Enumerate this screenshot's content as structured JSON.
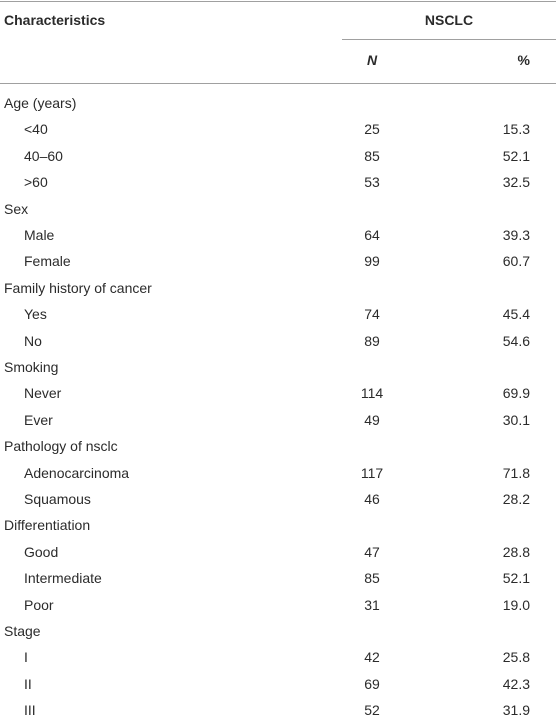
{
  "table": {
    "header": {
      "characteristics": "Characteristics",
      "group": "NSCLC",
      "n": "N",
      "pct": "%"
    },
    "groups": [
      {
        "label": "Age (years)",
        "rows": [
          [
            "<40",
            "25",
            "15.3"
          ],
          [
            "40–60",
            "85",
            "52.1"
          ],
          [
            ">60",
            "53",
            "32.5"
          ]
        ]
      },
      {
        "label": "Sex",
        "rows": [
          [
            "Male",
            "64",
            "39.3"
          ],
          [
            "Female",
            "99",
            "60.7"
          ]
        ]
      },
      {
        "label": "Family history of cancer",
        "rows": [
          [
            "Yes",
            "74",
            "45.4"
          ],
          [
            "No",
            "89",
            "54.6"
          ]
        ]
      },
      {
        "label": "Smoking",
        "rows": [
          [
            "Never",
            "114",
            "69.9"
          ],
          [
            "Ever",
            "49",
            "30.1"
          ]
        ]
      },
      {
        "label": "Pathology of nsclc",
        "rows": [
          [
            "Adenocarcinoma",
            "117",
            "71.8"
          ],
          [
            "Squamous",
            "46",
            "28.2"
          ]
        ]
      },
      {
        "label": "Differentiation",
        "rows": [
          [
            "Good",
            "47",
            "28.8"
          ],
          [
            "Intermediate",
            "85",
            "52.1"
          ],
          [
            "Poor",
            "31",
            "19.0"
          ]
        ]
      },
      {
        "label": "Stage",
        "rows": [
          [
            "I",
            "42",
            "25.8"
          ],
          [
            "II",
            "69",
            "42.3"
          ],
          [
            "III",
            "52",
            "31.9"
          ]
        ]
      }
    ]
  }
}
